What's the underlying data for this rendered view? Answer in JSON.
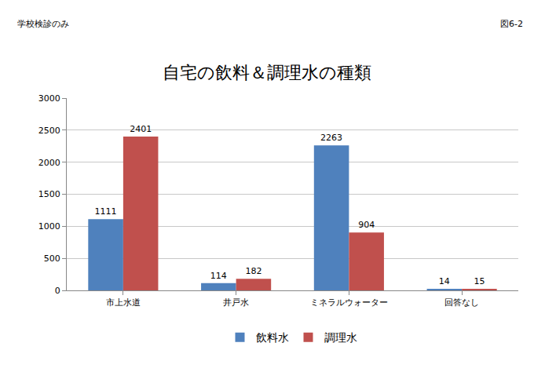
{
  "chart_data": {
    "type": "bar",
    "title": "自宅の飲料＆調理水の種類",
    "annotations": [
      "学校検診のみ",
      "図6-2"
    ],
    "categories": [
      "市上水道",
      "井戸水",
      "ミネラルウォーター",
      "回答なし"
    ],
    "series": [
      {
        "name": "飲料水",
        "color": "#4f81bd",
        "values": [
          1111,
          114,
          2263,
          14
        ]
      },
      {
        "name": "調理水",
        "color": "#c0504d",
        "values": [
          2401,
          182,
          904,
          15
        ]
      }
    ],
    "ylim": [
      0,
      3000
    ],
    "yticks": [
      0,
      500,
      1000,
      1500,
      2000,
      2500,
      3000
    ],
    "grid": true,
    "legend": "bottom",
    "data_labels": true
  }
}
